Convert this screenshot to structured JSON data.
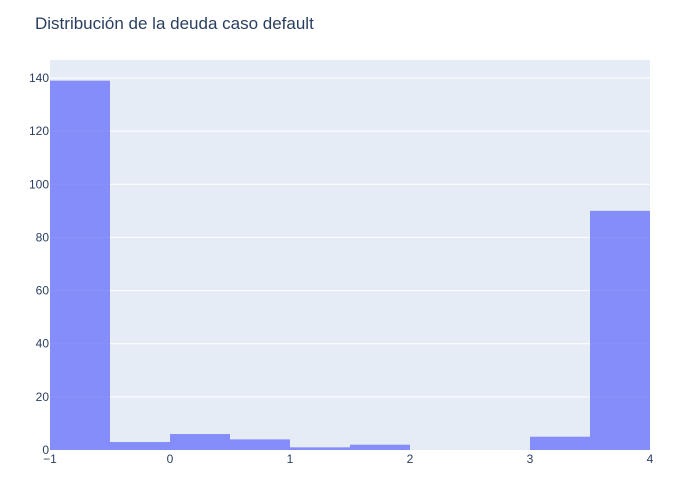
{
  "chart_data": {
    "type": "bar",
    "subtype": "histogram",
    "title": "Distribución de la deuda caso default",
    "xlabel": "",
    "ylabel": "",
    "xlim": [
      -1,
      4
    ],
    "ylim": [
      0,
      140
    ],
    "grid": true,
    "legend": "none",
    "x_ticks": [
      -1,
      0,
      1,
      2,
      3,
      4
    ],
    "x_tick_labels": [
      "−1",
      "0",
      "1",
      "2",
      "3",
      "4"
    ],
    "y_ticks": [
      0,
      20,
      40,
      60,
      80,
      100,
      120,
      140
    ],
    "y_tick_labels": [
      "0",
      "20",
      "40",
      "60",
      "80",
      "100",
      "120",
      "140"
    ],
    "bin_width": 0.5,
    "bins": [
      {
        "start": -1.0,
        "end": -0.5,
        "count": 139
      },
      {
        "start": -0.5,
        "end": 0.0,
        "count": 3
      },
      {
        "start": 0.0,
        "end": 0.5,
        "count": 6
      },
      {
        "start": 0.5,
        "end": 1.0,
        "count": 4
      },
      {
        "start": 1.0,
        "end": 1.5,
        "count": 1
      },
      {
        "start": 1.5,
        "end": 2.0,
        "count": 2
      },
      {
        "start": 2.0,
        "end": 2.5,
        "count": 0
      },
      {
        "start": 2.5,
        "end": 3.0,
        "count": 0
      },
      {
        "start": 3.0,
        "end": 3.5,
        "count": 5
      },
      {
        "start": 3.5,
        "end": 4.0,
        "count": 90
      }
    ],
    "colors": {
      "bar": "#636efa",
      "plot_background": "#e5ecf6",
      "grid": "#ffffff",
      "text": "#2a3f5f"
    }
  }
}
